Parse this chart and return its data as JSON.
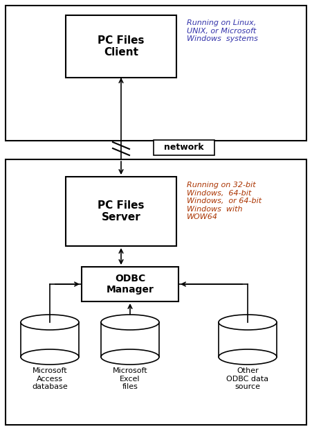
{
  "fig_width": 4.51,
  "fig_height": 6.19,
  "bg_color": "#ffffff",
  "box_edge_color": "#000000",
  "upper_section_bg": "#ffffff",
  "lower_section_bg": "#ffffff",
  "pc_client_label": "PC Files\nClient",
  "pc_server_label": "PC Files\nServer",
  "odbc_label": "ODBC\nManager",
  "network_label": "network",
  "db1_label": "Microsoft\nAccess\ndatabase",
  "db2_label": "Microsoft\nExcel\nfiles",
  "db3_label": "Other\nODBC data\nsource",
  "annotation_client": "Running on Linux,\nUNIX, or Microsoft\nWindows  systems",
  "annotation_server": "Running on 32-bit\nWindows,  64-bit\nWindows,  or 64-bit\nWindows  with\nWOW64",
  "annotation_color_client": "#3333aa",
  "annotation_color_server": "#aa3300",
  "main_text_color": "#000000",
  "line_color": "#000000"
}
